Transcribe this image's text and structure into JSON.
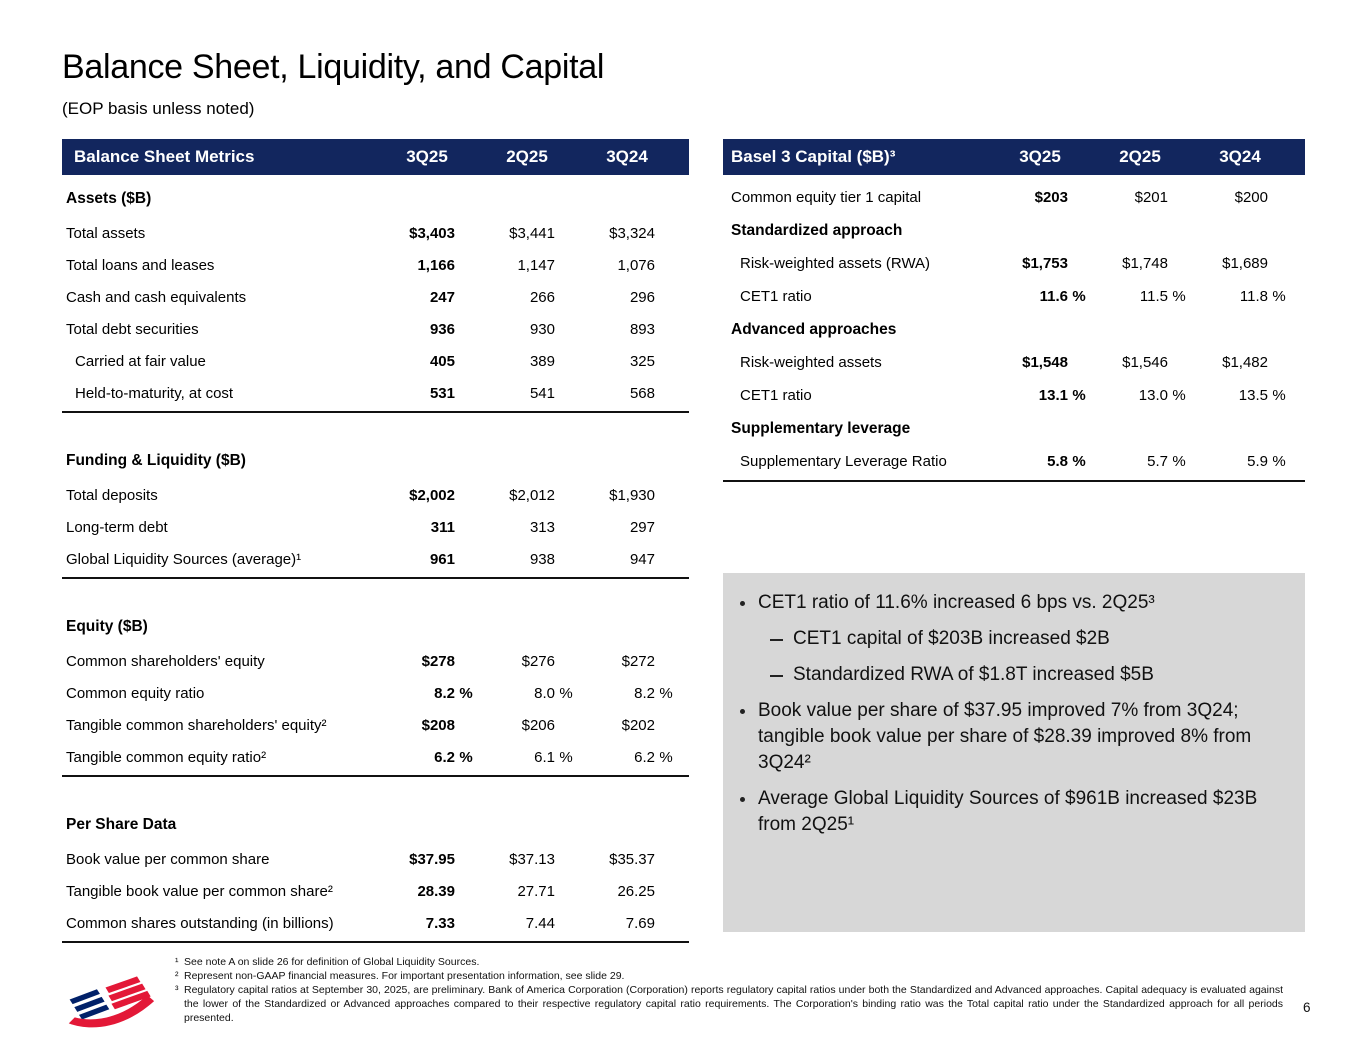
{
  "page": {
    "page_number": "6"
  },
  "colors": {
    "navy": "#12265E",
    "callout_bg": "#D7D7D7",
    "logo_red": "#E31837",
    "logo_blue": "#012169"
  },
  "header": {
    "title": "Balance Sheet, Liquidity, and Capital",
    "subtitle": "(EOP basis unless noted)"
  },
  "left_table": {
    "header": {
      "label": "Balance Sheet Metrics",
      "columns": [
        "3Q25",
        "2Q25",
        "3Q24"
      ]
    },
    "sections": [
      {
        "title": "Assets ($B)",
        "rows": [
          {
            "label": "Total assets",
            "v": [
              "$3,403",
              "$3,441",
              "$3,324"
            ]
          },
          {
            "label": "Total loans and leases",
            "v": [
              "1,166",
              "1,147",
              "1,076"
            ]
          },
          {
            "label": "Cash and cash equivalents",
            "v": [
              "247",
              "266",
              "296"
            ]
          },
          {
            "label": "Total debt securities",
            "v": [
              "936",
              "930",
              "893"
            ]
          },
          {
            "label": "Carried at fair value",
            "v": [
              "405",
              "389",
              "325"
            ],
            "indent": true
          },
          {
            "label": "Held-to-maturity, at cost",
            "v": [
              "531",
              "541",
              "568"
            ],
            "indent": true
          }
        ]
      },
      {
        "title": "Funding & Liquidity ($B)",
        "rows": [
          {
            "label": "Total deposits",
            "v": [
              "$2,002",
              "$2,012",
              "$1,930"
            ]
          },
          {
            "label": "Long-term debt",
            "v": [
              "311",
              "313",
              "297"
            ]
          },
          {
            "label": "Global Liquidity Sources (average)¹",
            "v": [
              "961",
              "938",
              "947"
            ]
          }
        ]
      },
      {
        "title": "Equity ($B)",
        "rows": [
          {
            "label": "Common shareholders' equity",
            "v": [
              "$278",
              "$276",
              "$272"
            ]
          },
          {
            "label": "Common equity ratio",
            "v": [
              "8.2",
              "8.0",
              "8.2"
            ],
            "pct": true
          },
          {
            "label": "Tangible common shareholders' equity²",
            "v": [
              "$208",
              "$206",
              "$202"
            ]
          },
          {
            "label": "Tangible common equity ratio²",
            "v": [
              "6.2",
              "6.1",
              "6.2"
            ],
            "pct": true
          }
        ]
      },
      {
        "title": "Per Share Data",
        "rows": [
          {
            "label": "Book value per common share",
            "v": [
              "$37.95",
              "$37.13",
              "$35.37"
            ]
          },
          {
            "label": "Tangible book value per common share²",
            "v": [
              "28.39",
              "27.71",
              "26.25"
            ]
          },
          {
            "label": "Common shares outstanding (in billions)",
            "v": [
              "7.33",
              "7.44",
              "7.69"
            ]
          }
        ]
      }
    ]
  },
  "right_table": {
    "header": {
      "label": "Basel 3 Capital ($B)³",
      "columns": [
        "3Q25",
        "2Q25",
        "3Q24"
      ]
    },
    "rows": [
      {
        "label": "Common equity tier 1 capital",
        "v": [
          "$203",
          "$201",
          "$200"
        ]
      },
      {
        "label": "Standardized approach",
        "subhead": true
      },
      {
        "label": "Risk-weighted assets (RWA)",
        "v": [
          "$1,753",
          "$1,748",
          "$1,689"
        ],
        "indent": true
      },
      {
        "label": "CET1 ratio",
        "v": [
          "11.6",
          "11.5",
          "11.8"
        ],
        "pct": true,
        "indent": true
      },
      {
        "label": "Advanced approaches",
        "subhead": true
      },
      {
        "label": "Risk-weighted assets",
        "v": [
          "$1,548",
          "$1,546",
          "$1,482"
        ],
        "indent": true
      },
      {
        "label": "CET1 ratio",
        "v": [
          "13.1",
          "13.0",
          "13.5"
        ],
        "pct": true,
        "indent": true
      },
      {
        "label": "Supplementary leverage",
        "subhead": true
      },
      {
        "label": "Supplementary Leverage Ratio",
        "v": [
          "5.8",
          "5.7",
          "5.9"
        ],
        "pct": true,
        "indent": true
      }
    ]
  },
  "callout": {
    "bullets": [
      {
        "level": 1,
        "text": "CET1 ratio of 11.6% increased 6 bps vs. 2Q25³"
      },
      {
        "level": 2,
        "text": "CET1 capital of $203B increased $2B"
      },
      {
        "level": 2,
        "text": "Standardized RWA of $1.8T increased $5B"
      },
      {
        "level": 1,
        "text": "Book value per share of $37.95 improved 7% from 3Q24; tangible book value per share of $28.39 improved 8% from 3Q24²"
      },
      {
        "level": 1,
        "text": "Average Global Liquidity Sources of $961B increased $23B from 2Q25¹"
      }
    ]
  },
  "footnotes": [
    {
      "marker": "¹",
      "text": "See note A on slide 26 for definition of Global Liquidity Sources.",
      "justify": false
    },
    {
      "marker": "²",
      "text": "Represent non-GAAP financial measures. For important presentation information, see slide 29.",
      "justify": false
    },
    {
      "marker": "³",
      "text": "Regulatory capital ratios at September 30, 2025, are preliminary. Bank of America Corporation (Corporation) reports regulatory capital ratios under both the Standardized and Advanced approaches. Capital adequacy is evaluated against the lower of the Standardized or Advanced approaches compared to their respective regulatory capital ratio requirements. The Corporation's binding ratio was the Total capital ratio under the Standardized approach for all periods presented.",
      "justify": true
    }
  ]
}
